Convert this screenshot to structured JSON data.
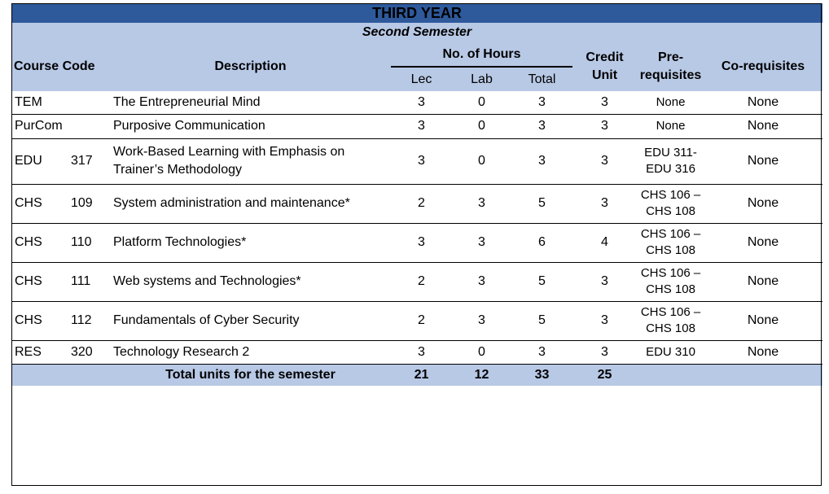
{
  "title": "THIRD YEAR",
  "semester": "Second Semester",
  "headers": {
    "course_code": "Course Code",
    "description": "Description",
    "no_of_hours": "No. of Hours",
    "lec": "Lec",
    "lab": "Lab",
    "total": "Total",
    "credit_unit_1": "Credit",
    "credit_unit_2": "Unit",
    "prereq_1": "Pre-",
    "prereq_2": "requisites",
    "coreq": "Co-requisites"
  },
  "rows": [
    {
      "code": "TEM",
      "num": "",
      "desc1": "The Entrepreneurial Mind",
      "desc2": "",
      "lec": "3",
      "lab": "0",
      "total": "3",
      "credit": "3",
      "pre1": "None",
      "pre2": "",
      "co": "None"
    },
    {
      "code": "PurCom",
      "num": "",
      "desc1": "Purposive Communication",
      "desc2": "",
      "lec": "3",
      "lab": "0",
      "total": "3",
      "credit": "3",
      "pre1": "None",
      "pre2": "",
      "co": "None"
    },
    {
      "code": "EDU",
      "num": "317",
      "desc1": "Work-Based Learning with Emphasis on",
      "desc2": "Trainer’s Methodology",
      "lec": "3",
      "lab": "0",
      "total": "3",
      "credit": "3",
      "pre1": "EDU 311-",
      "pre2": "EDU 316",
      "co": "None"
    },
    {
      "code": "CHS",
      "num": "109",
      "desc1": "System administration and maintenance*",
      "desc2": "",
      "lec": "2",
      "lab": "3",
      "total": "5",
      "credit": "3",
      "pre1": "CHS 106 –",
      "pre2": "CHS 108",
      "co": "None"
    },
    {
      "code": "CHS",
      "num": "110",
      "desc1": "Platform Technologies*",
      "desc2": "",
      "lec": "3",
      "lab": "3",
      "total": "6",
      "credit": "4",
      "pre1": "CHS 106 –",
      "pre2": "CHS 108",
      "co": "None"
    },
    {
      "code": "CHS",
      "num": "111",
      "desc1": "Web systems and Technologies*",
      "desc2": "",
      "lec": "2",
      "lab": "3",
      "total": "5",
      "credit": "3",
      "pre1": "CHS 106 –",
      "pre2": "CHS 108",
      "co": "None"
    },
    {
      "code": "CHS",
      "num": "112",
      "desc1": "Fundamentals of Cyber Security",
      "desc2": "",
      "lec": "2",
      "lab": "3",
      "total": "5",
      "credit": "3",
      "pre1": "CHS 106 –",
      "pre2": "CHS 108",
      "co": "None"
    },
    {
      "code": "RES",
      "num": "320",
      "desc1": "Technology Research 2",
      "desc2": "",
      "lec": "3",
      "lab": "0",
      "total": "3",
      "credit": "3",
      "pre1": "EDU 310",
      "pre2": "",
      "co": "None"
    }
  ],
  "totals": {
    "label": "Total units for the semester",
    "lec": "21",
    "lab": "12",
    "total": "33",
    "credit": "25"
  },
  "colors": {
    "title_bar": "#2e5a9c",
    "header_fill": "#b8c9e6"
  }
}
